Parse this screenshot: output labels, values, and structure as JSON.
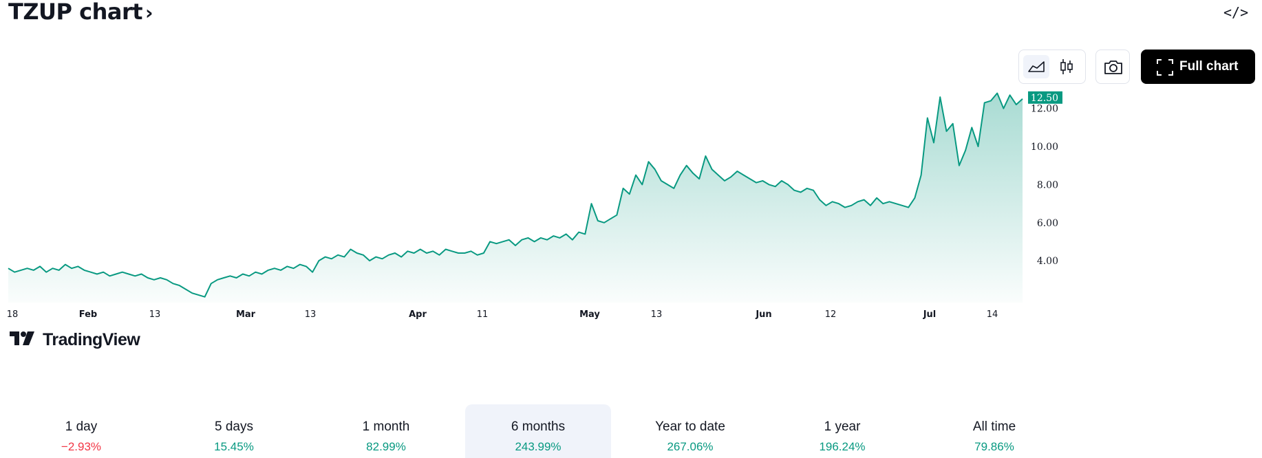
{
  "header": {
    "title": "TZUP chart",
    "title_chevron": "›",
    "embed_label": "</>"
  },
  "toolbar": {
    "style_buttons": [
      {
        "icon": "area-chart-icon",
        "active": true
      },
      {
        "icon": "candlestick-icon",
        "active": false
      }
    ],
    "snapshot_icon": "camera-icon",
    "full_chart_label": "Full chart",
    "full_chart_icon": "expand-icon"
  },
  "watermark": "TradingView",
  "colors": {
    "line": "#089981",
    "positive": "#089981",
    "negative": "#f23645",
    "price_tag_bg": "#089981"
  },
  "chart_data": {
    "type": "area",
    "title": "",
    "xlabel": "",
    "ylabel": "",
    "x_tick_labels": [
      "18",
      "Feb",
      "13",
      "Mar",
      "13",
      "Apr",
      "11",
      "May",
      "13",
      "Jun",
      "12",
      "Jul",
      "14"
    ],
    "y_tick_labels": [
      "4.00",
      "6.00",
      "8.00",
      "10.00",
      "12.00"
    ],
    "ylim": [
      1.8,
      13.0
    ],
    "last_price": "12.50",
    "series": [
      {
        "values": [
          3.6,
          3.4,
          3.5,
          3.6,
          3.5,
          3.7,
          3.4,
          3.6,
          3.5,
          3.8,
          3.6,
          3.7,
          3.5,
          3.4,
          3.3,
          3.4,
          3.2,
          3.3,
          3.4,
          3.3,
          3.2,
          3.3,
          3.1,
          3.0,
          3.1,
          3.0,
          2.8,
          2.7,
          2.5,
          2.3,
          2.2,
          2.1,
          2.8,
          3.0,
          3.1,
          3.2,
          3.1,
          3.3,
          3.2,
          3.4,
          3.3,
          3.5,
          3.6,
          3.5,
          3.7,
          3.6,
          3.8,
          3.7,
          3.4,
          4.0,
          4.2,
          4.1,
          4.3,
          4.2,
          4.6,
          4.4,
          4.3,
          4.0,
          4.2,
          4.1,
          4.3,
          4.4,
          4.2,
          4.5,
          4.4,
          4.6,
          4.4,
          4.5,
          4.3,
          4.6,
          4.5,
          4.4,
          4.4,
          4.5,
          4.3,
          4.4,
          5.0,
          4.9,
          5.0,
          5.1,
          4.8,
          5.1,
          5.2,
          5.0,
          5.2,
          5.1,
          5.3,
          5.2,
          5.4,
          5.1,
          5.5,
          5.4,
          7.0,
          6.1,
          6.0,
          6.2,
          6.4,
          7.8,
          7.5,
          8.5,
          8.0,
          9.2,
          8.8,
          8.2,
          8.0,
          7.8,
          8.5,
          9.0,
          8.6,
          8.3,
          9.5,
          8.8,
          8.5,
          8.2,
          8.4,
          8.7,
          8.5,
          8.3,
          8.1,
          8.2,
          8.0,
          7.9,
          8.2,
          8.0,
          7.7,
          7.6,
          7.8,
          7.7,
          7.2,
          6.9,
          7.1,
          7.0,
          6.8,
          6.9,
          7.1,
          7.2,
          6.9,
          7.3,
          7.0,
          7.1,
          7.0,
          6.9,
          6.8,
          7.3,
          8.5,
          11.5,
          10.2,
          12.6,
          10.8,
          11.2,
          9.0,
          9.8,
          11.0,
          10.0,
          12.3,
          12.4,
          12.8,
          12.0,
          12.7,
          12.2,
          12.5
        ]
      }
    ],
    "grid": false,
    "price_scale": "right"
  },
  "periods": [
    {
      "label": "1 day",
      "value": "−2.93%",
      "direction": "down",
      "active": false
    },
    {
      "label": "5 days",
      "value": "15.45%",
      "direction": "up",
      "active": false
    },
    {
      "label": "1 month",
      "value": "82.99%",
      "direction": "up",
      "active": false
    },
    {
      "label": "6 months",
      "value": "243.99%",
      "direction": "up",
      "active": true
    },
    {
      "label": "Year to date",
      "value": "267.06%",
      "direction": "up",
      "active": false
    },
    {
      "label": "1 year",
      "value": "196.24%",
      "direction": "up",
      "active": false
    },
    {
      "label": "All time",
      "value": "79.86%",
      "direction": "up",
      "active": false
    }
  ]
}
